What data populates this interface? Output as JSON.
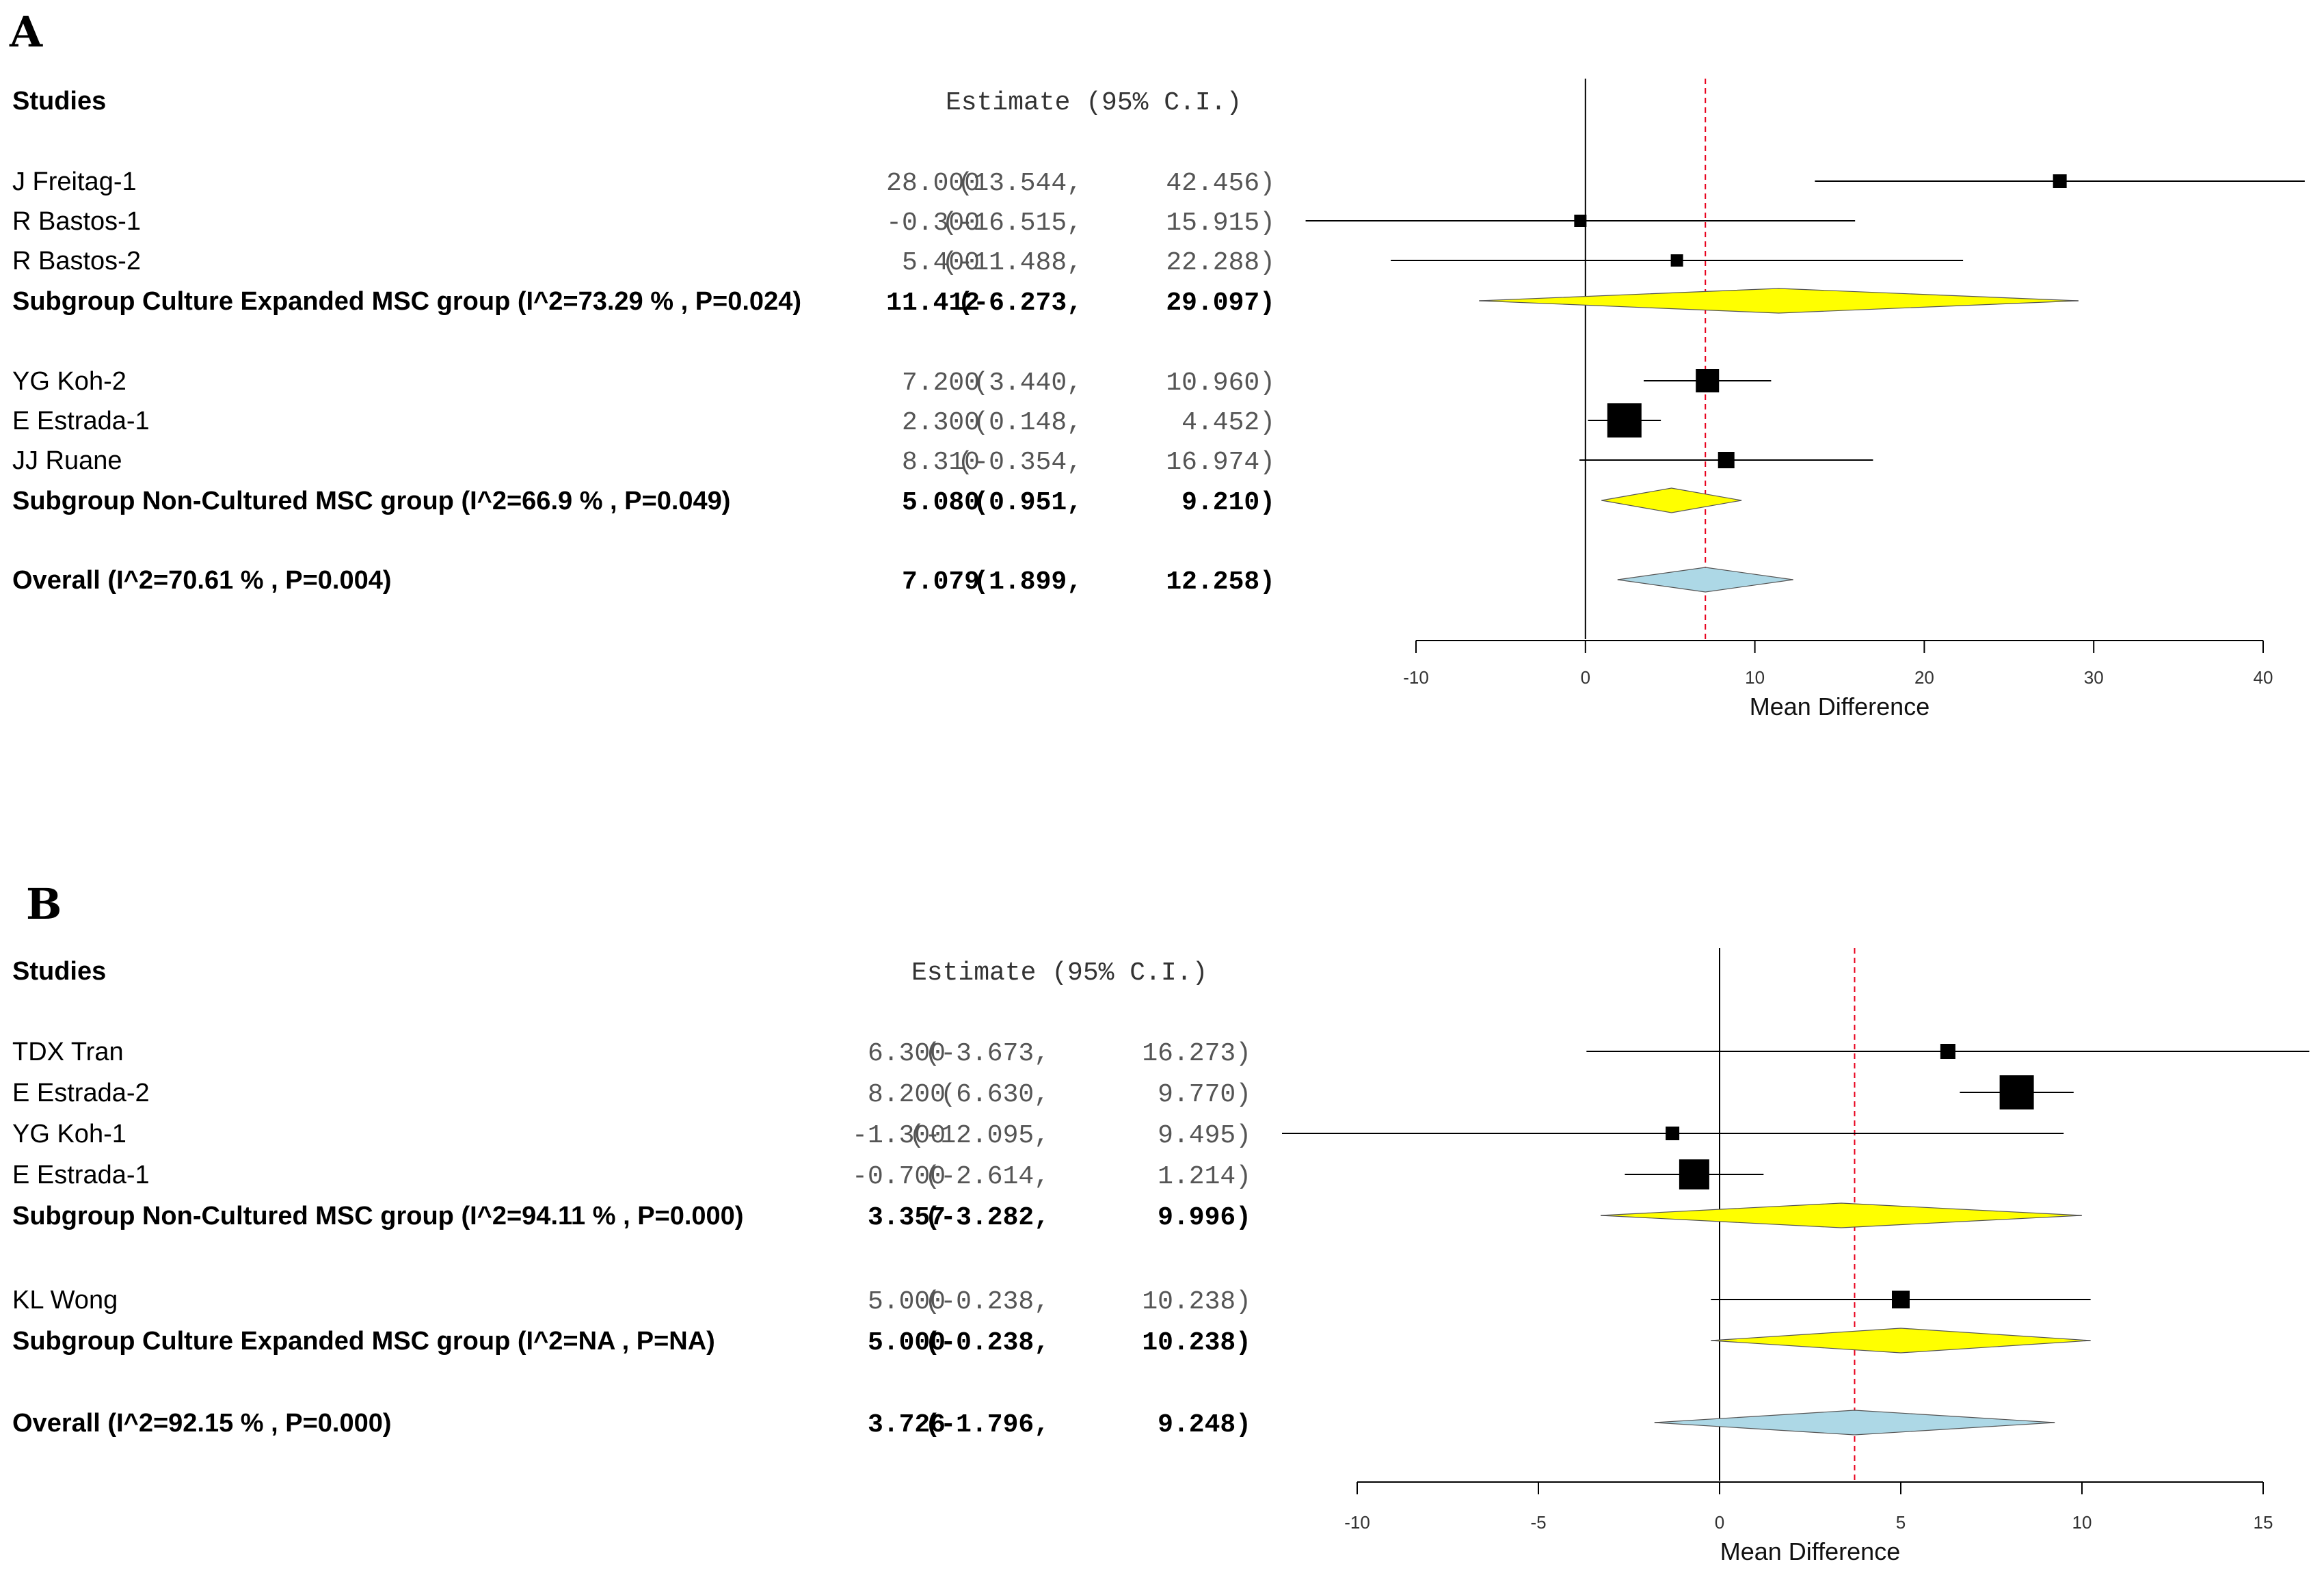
{
  "chart_data": [
    {
      "panel": "A",
      "type": "forest",
      "header": {
        "studies": "Studies",
        "estimate": "Estimate (95% C.I.)"
      },
      "xlabel": "Mean Difference",
      "xlim": [
        -10,
        40
      ],
      "ticks": [
        "-10",
        "0",
        "10",
        "20",
        "30",
        "40"
      ],
      "tick_values": [
        -10,
        0,
        10,
        20,
        30,
        40
      ],
      "overall_line": 7.079,
      "rows": [
        {
          "label": "J Freitag-1",
          "est": "28.000",
          "lo": "(13.544,",
          "hi": "42.456)",
          "e": 28.0,
          "l": 13.544,
          "h": 42.456,
          "kind": "study",
          "w": 20
        },
        {
          "label": "R Bastos-1",
          "est": "-0.300",
          "lo": "(-16.515,",
          "hi": "15.915)",
          "e": -0.3,
          "l": -16.515,
          "h": 15.915,
          "kind": "study",
          "w": 18
        },
        {
          "label": "R Bastos-2",
          "est": "5.400",
          "lo": "(-11.488,",
          "hi": "22.288)",
          "e": 5.4,
          "l": -11.488,
          "h": 22.288,
          "kind": "study",
          "w": 18
        },
        {
          "label": "Subgroup Culture Expanded MSC group (I^2=73.29 % , P=0.024)",
          "est": "11.412",
          "lo": "(-6.273,",
          "hi": "29.097)",
          "e": 11.412,
          "l": -6.273,
          "h": 29.097,
          "kind": "subgroup"
        },
        {
          "label": "YG Koh-2",
          "est": "7.200",
          "lo": "(3.440,",
          "hi": "10.960)",
          "e": 7.2,
          "l": 3.44,
          "h": 10.96,
          "kind": "study",
          "w": 34
        },
        {
          "label": "E Estrada-1",
          "est": "2.300",
          "lo": "(0.148,",
          "hi": "4.452)",
          "e": 2.3,
          "l": 0.148,
          "h": 4.452,
          "kind": "study",
          "w": 50
        },
        {
          "label": "JJ Ruane",
          "est": "8.310",
          "lo": "(-0.354,",
          "hi": "16.974)",
          "e": 8.31,
          "l": -0.354,
          "h": 16.974,
          "kind": "study",
          "w": 24
        },
        {
          "label": "Subgroup Non-Cultured MSC group (I^2=66.9 % , P=0.049)",
          "est": "5.080",
          "lo": "(0.951,",
          "hi": "9.210)",
          "e": 5.08,
          "l": 0.951,
          "h": 9.21,
          "kind": "subgroup"
        },
        {
          "label": "Overall (I^2=70.61 % , P=0.004)",
          "est": "7.079",
          "lo": "(1.899,",
          "hi": "12.258)",
          "e": 7.079,
          "l": 1.899,
          "h": 12.258,
          "kind": "overall"
        }
      ]
    },
    {
      "panel": "B",
      "type": "forest",
      "header": {
        "studies": "Studies",
        "estimate": "Estimate (95% C.I.)"
      },
      "xlabel": "Mean Difference",
      "xlim": [
        -10,
        15
      ],
      "ticks": [
        "-10",
        "-5",
        "0",
        "5",
        "10",
        "15"
      ],
      "tick_values": [
        -10,
        -5,
        0,
        5,
        10,
        15
      ],
      "overall_line": 3.726,
      "rows": [
        {
          "label": "TDX Tran",
          "est": "6.300",
          "lo": "(-3.673,",
          "hi": "16.273)",
          "e": 6.3,
          "l": -3.673,
          "h": 16.273,
          "kind": "study",
          "w": 22
        },
        {
          "label": "E Estrada-2",
          "est": "8.200",
          "lo": "(6.630,",
          "hi": "9.770)",
          "e": 8.2,
          "l": 6.63,
          "h": 9.77,
          "kind": "study",
          "w": 50
        },
        {
          "label": "YG Koh-1",
          "est": "-1.300",
          "lo": "(-12.095,",
          "hi": "9.495)",
          "e": -1.3,
          "l": -12.095,
          "h": 9.495,
          "kind": "study",
          "w": 20
        },
        {
          "label": "E Estrada-1",
          "est": "-0.700",
          "lo": "(-2.614,",
          "hi": "1.214)",
          "e": -0.7,
          "l": -2.614,
          "h": 1.214,
          "kind": "study",
          "w": 44
        },
        {
          "label": "Subgroup Non-Cultured MSC group (I^2=94.11 % , P=0.000)",
          "est": "3.357",
          "lo": "(-3.282,",
          "hi": "9.996)",
          "e": 3.357,
          "l": -3.282,
          "h": 9.996,
          "kind": "subgroup"
        },
        {
          "label": "KL Wong",
          "est": "5.000",
          "lo": "(-0.238,",
          "hi": "10.238)",
          "e": 5.0,
          "l": -0.238,
          "h": 10.238,
          "kind": "study",
          "w": 26
        },
        {
          "label": "Subgroup Culture Expanded MSC group (I^2=NA , P=NA)",
          "est": "5.000",
          "lo": "(-0.238,",
          "hi": "10.238)",
          "e": 5.0,
          "l": -0.238,
          "h": 10.238,
          "kind": "subgroup"
        },
        {
          "label": "Overall (I^2=92.15 % , P=0.000)",
          "est": "3.726",
          "lo": "(-1.796,",
          "hi": "9.248)",
          "e": 3.726,
          "l": -1.796,
          "h": 9.248,
          "kind": "overall"
        }
      ]
    }
  ],
  "colors": {
    "subgroup_fill": "#ffff00",
    "overall_fill": "#add8e6",
    "reference_line": "#e8001c",
    "marker": "#000000"
  }
}
